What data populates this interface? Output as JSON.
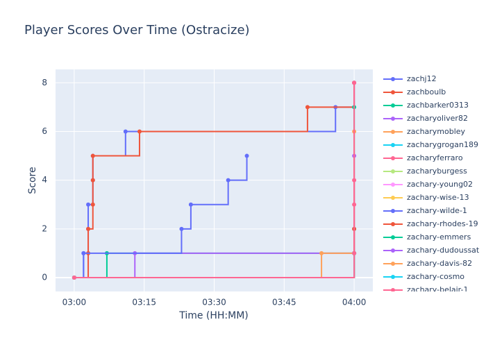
{
  "chart_data": {
    "type": "step-line",
    "title": "Player Scores Over Time (Ostracize)",
    "x_label": "Time (HH:MM)",
    "y_label": "Score",
    "xlim": [
      "02:56",
      "04:04"
    ],
    "xticks": [
      "03:00",
      "03:15",
      "03:30",
      "03:45",
      "04:00"
    ],
    "ylim": [
      -0.57,
      8.55
    ],
    "yticks": [
      0,
      2,
      4,
      6,
      8
    ],
    "grid": true,
    "legend": "right",
    "series": [
      {
        "name": "zachj12",
        "color": "#636efa",
        "x": [
          "03:00",
          "03:02",
          "03:03",
          "03:03",
          "03:04",
          "03:04",
          "03:11",
          "03:56",
          "04:00"
        ],
        "values": [
          0,
          1,
          2,
          3,
          4,
          5,
          6,
          7,
          8
        ]
      },
      {
        "name": "zachboulb",
        "color": "#EF553B",
        "x": [
          "03:00",
          "03:03",
          "03:03",
          "03:04",
          "03:04",
          "03:04",
          "03:14",
          "03:50",
          "04:00"
        ],
        "values": [
          0,
          1,
          2,
          3,
          4,
          5,
          6,
          7,
          8
        ]
      },
      {
        "name": "zachbarker0313",
        "color": "#00cc96",
        "x": [
          "03:00",
          "03:07",
          "04:00"
        ],
        "values": [
          0,
          1,
          7
        ]
      },
      {
        "name": "zacharyoliver82",
        "color": "#ab63fa",
        "x": [
          "03:00",
          "03:13",
          "04:00"
        ],
        "values": [
          0,
          1,
          5
        ]
      },
      {
        "name": "zacharymobley",
        "color": "#FFA15A",
        "x": [
          "03:00",
          "03:53",
          "04:00"
        ],
        "values": [
          0,
          1,
          6
        ]
      },
      {
        "name": "zacharygrogan189",
        "color": "#19d3f3",
        "x": [
          "03:00",
          "04:00",
          "04:00"
        ],
        "values": [
          0,
          1,
          2
        ]
      },
      {
        "name": "zacharyferraro",
        "color": "#FF6692",
        "x": [
          "03:00",
          "04:00",
          "04:00",
          "04:00"
        ],
        "values": [
          0,
          1,
          3,
          4
        ]
      },
      {
        "name": "zacharyburgess",
        "color": "#B6E880",
        "x": [
          "03:00",
          "04:00"
        ],
        "values": [
          0,
          1
        ]
      },
      {
        "name": "zachary-young02",
        "color": "#FF97FF",
        "x": [
          "03:00",
          "04:00"
        ],
        "values": [
          0,
          1
        ]
      },
      {
        "name": "zachary-wise-13",
        "color": "#FECB52",
        "x": [
          "03:00",
          "04:00"
        ],
        "values": [
          0,
          1
        ]
      },
      {
        "name": "zachary-wilde-1",
        "color": "#636efa",
        "x": [
          "03:00",
          "03:02",
          "03:23",
          "03:25",
          "03:33",
          "03:37"
        ],
        "values": [
          0,
          1,
          2,
          3,
          4,
          5
        ]
      },
      {
        "name": "zachary-rhodes-19",
        "color": "#EF553B",
        "x": [
          "03:00",
          "04:00",
          "04:00"
        ],
        "values": [
          0,
          1,
          2
        ]
      },
      {
        "name": "zachary-emmers",
        "color": "#00cc96",
        "x": [
          "03:00",
          "04:00"
        ],
        "values": [
          0,
          1
        ]
      },
      {
        "name": "zachary-dudoussat",
        "color": "#ab63fa",
        "x": [
          "03:00",
          "04:00"
        ],
        "values": [
          0,
          1
        ]
      },
      {
        "name": "zachary-davis-82",
        "color": "#FFA15A",
        "x": [
          "03:00",
          "04:00"
        ],
        "values": [
          0,
          1
        ]
      },
      {
        "name": "zachary-cosmo",
        "color": "#19d3f3",
        "x": [
          "03:00",
          "04:00"
        ],
        "values": [
          0,
          1
        ]
      },
      {
        "name": "zachary-belair-1",
        "color": "#FF6692",
        "x": [
          "03:00",
          "04:00",
          "04:00"
        ],
        "values": [
          0,
          1,
          8
        ]
      }
    ]
  }
}
